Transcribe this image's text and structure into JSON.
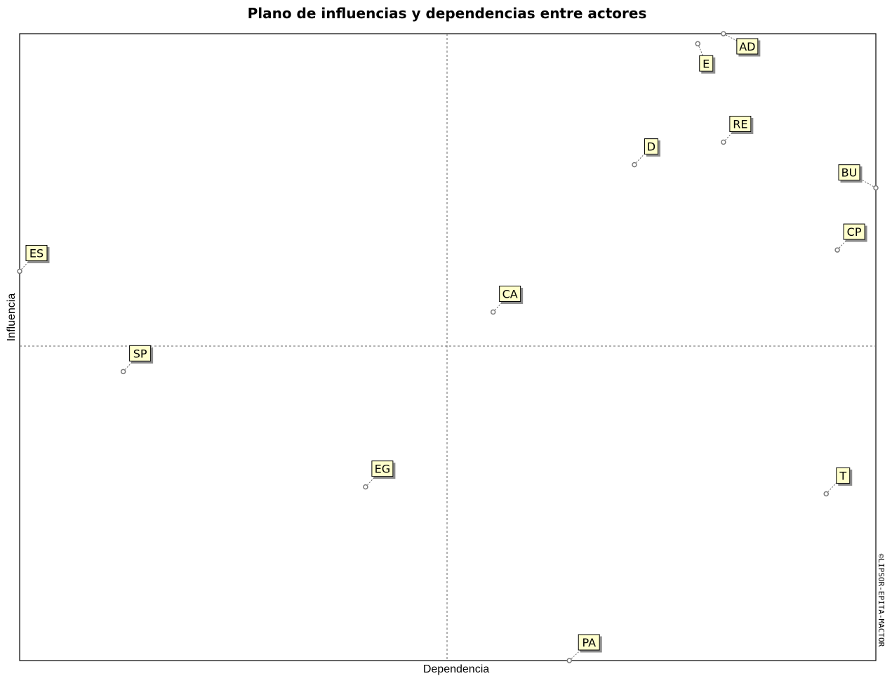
{
  "chart_data": {
    "type": "scatter",
    "title": "Plano de influencias y dependencias entre actores",
    "xlabel": "Dependencia",
    "ylabel": "Influencia",
    "copyright": "©LIPSOR-EPITA-MACTOR",
    "grid": false,
    "quadrant_lines": {
      "x": 0.5,
      "y": 0.5
    },
    "xlim": [
      0,
      1
    ],
    "ylim": [
      0,
      1
    ],
    "point_color": "#7a7a7a",
    "label_bg": "#ffffcc",
    "points": [
      {
        "name": "AD",
        "x": 0.822,
        "y": 1.0
      },
      {
        "name": "E",
        "x": 0.792,
        "y": 0.984
      },
      {
        "name": "RE",
        "x": 0.822,
        "y": 0.827
      },
      {
        "name": "D",
        "x": 0.718,
        "y": 0.791
      },
      {
        "name": "BU",
        "x": 1.0,
        "y": 0.754
      },
      {
        "name": "CP",
        "x": 0.955,
        "y": 0.655
      },
      {
        "name": "ES",
        "x": 0.0,
        "y": 0.621
      },
      {
        "name": "CA",
        "x": 0.553,
        "y": 0.556
      },
      {
        "name": "SP",
        "x": 0.121,
        "y": 0.461
      },
      {
        "name": "EG",
        "x": 0.404,
        "y": 0.277
      },
      {
        "name": "T",
        "x": 0.942,
        "y": 0.266
      },
      {
        "name": "PA",
        "x": 0.642,
        "y": 0.0
      }
    ]
  }
}
